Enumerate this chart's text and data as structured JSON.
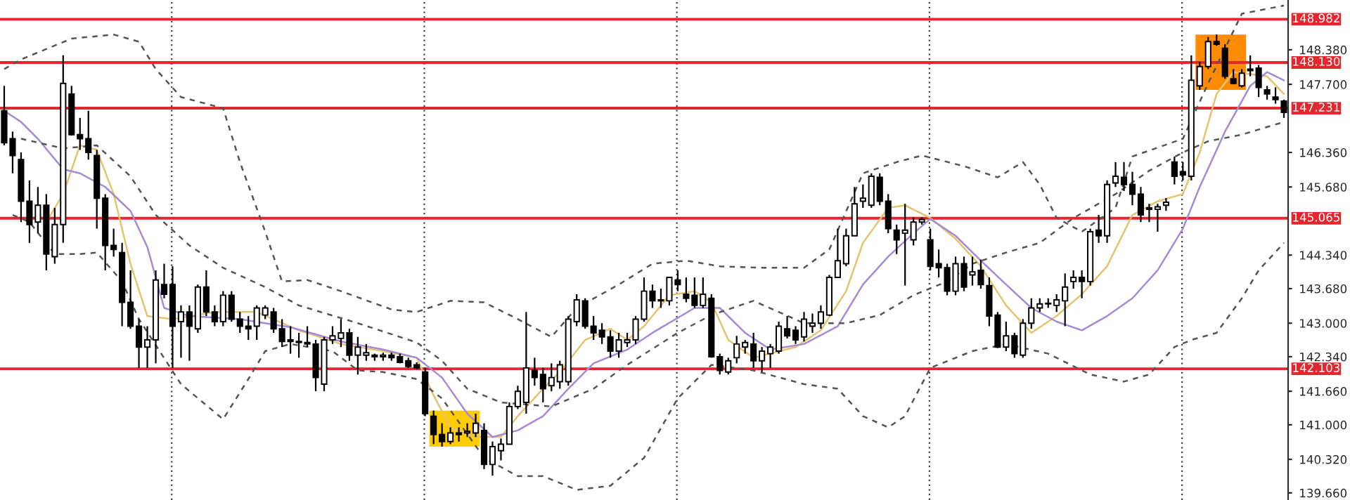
{
  "chart_data": {
    "type": "candlestick",
    "categories": [
      null,
      null,
      null,
      null,
      null,
      null,
      null,
      null,
      null,
      null,
      null,
      null,
      null,
      null,
      null,
      null,
      null,
      null,
      null,
      null,
      null,
      null,
      null,
      null,
      null,
      null,
      null,
      null,
      null,
      null,
      null,
      null,
      null,
      null,
      null,
      null,
      null,
      null,
      null,
      null,
      null,
      null,
      null,
      null,
      null,
      null,
      null,
      null,
      null,
      null,
      null,
      null,
      null,
      null,
      null,
      null,
      null,
      null,
      null,
      null,
      null,
      null,
      null,
      null,
      null,
      null,
      null,
      null,
      null,
      null,
      null,
      null,
      null,
      null,
      null,
      null,
      null,
      null,
      null,
      null,
      null,
      null,
      null,
      null,
      null,
      null,
      null,
      null,
      null,
      null,
      null,
      null,
      null,
      null,
      null,
      null,
      null,
      null,
      null,
      null,
      null,
      null,
      null,
      null,
      null,
      null,
      null,
      null,
      null,
      null,
      null,
      null,
      null,
      null,
      null,
      null,
      null,
      null,
      null,
      null,
      null,
      null,
      null,
      null,
      null,
      null,
      null,
      null,
      null,
      null,
      null,
      null,
      null,
      null,
      null,
      null,
      null,
      null,
      null,
      null,
      null,
      null,
      null,
      null,
      null,
      null,
      null,
      null,
      null,
      null,
      null,
      null,
      null
    ],
    "ohlc": [
      [
        147.18,
        147.67,
        146.5,
        146.55
      ],
      [
        146.63,
        146.77,
        145.95,
        146.3
      ],
      [
        146.22,
        146.36,
        144.99,
        145.4
      ],
      [
        145.4,
        145.81,
        144.58,
        144.94
      ],
      [
        144.99,
        145.68,
        144.77,
        145.32
      ],
      [
        145.32,
        145.54,
        144.04,
        144.36
      ],
      [
        144.31,
        145.27,
        144.17,
        144.94
      ],
      [
        144.94,
        148.27,
        144.58,
        147.72
      ],
      [
        147.51,
        147.67,
        146.69,
        146.71
      ],
      [
        146.71,
        147.04,
        146.41,
        146.63
      ],
      [
        146.63,
        147.18,
        146.22,
        146.36
      ],
      [
        146.3,
        146.41,
        144.86,
        145.46
      ],
      [
        145.46,
        145.54,
        144.04,
        144.53
      ],
      [
        144.53,
        144.86,
        144.31,
        144.45
      ],
      [
        144.39,
        144.58,
        142.94,
        143.41
      ],
      [
        143.41,
        144.04,
        142.89,
        142.94
      ],
      [
        142.94,
        143.08,
        142.12,
        142.53
      ],
      [
        142.53,
        142.94,
        142.12,
        142.67
      ],
      [
        142.67,
        144.04,
        142.21,
        143.85
      ],
      [
        143.76,
        144.17,
        143.49,
        143.57
      ],
      [
        143.76,
        144.12,
        142.12,
        142.94
      ],
      [
        143.03,
        143.35,
        142.32,
        143.22
      ],
      [
        143.22,
        143.35,
        142.26,
        142.94
      ],
      [
        142.89,
        143.76,
        142.81,
        143.71
      ],
      [
        143.71,
        144.04,
        143.14,
        143.22
      ],
      [
        143.22,
        143.35,
        142.94,
        143.03
      ],
      [
        143.03,
        143.63,
        142.94,
        143.55
      ],
      [
        143.55,
        143.63,
        143.03,
        143.08
      ],
      [
        143.08,
        143.22,
        142.81,
        142.94
      ],
      [
        142.94,
        143.14,
        142.67,
        142.89
      ],
      [
        142.94,
        143.35,
        142.67,
        143.3
      ],
      [
        143.16,
        143.35,
        143.08,
        143.3
      ],
      [
        143.22,
        143.3,
        142.81,
        142.89
      ],
      [
        142.89,
        143.08,
        142.53,
        142.64
      ],
      [
        142.67,
        142.94,
        142.4,
        142.64
      ],
      [
        142.64,
        142.81,
        142.32,
        142.62
      ],
      [
        142.62,
        142.94,
        142.53,
        142.59
      ],
      [
        142.59,
        142.67,
        141.66,
        141.93
      ],
      [
        141.8,
        142.73,
        141.66,
        142.67
      ],
      [
        142.67,
        142.94,
        142.59,
        142.75
      ],
      [
        142.7,
        143.08,
        142.53,
        142.81
      ],
      [
        142.81,
        142.89,
        142.26,
        142.37
      ],
      [
        142.37,
        142.73,
        141.99,
        142.53
      ],
      [
        142.37,
        142.59,
        142.26,
        142.42
      ],
      [
        142.37,
        142.4,
        142.26,
        142.34
      ],
      [
        142.34,
        142.42,
        142.26,
        142.37
      ],
      [
        142.37,
        142.42,
        142.26,
        142.32
      ],
      [
        142.34,
        142.4,
        142.21,
        142.23
      ],
      [
        142.26,
        142.32,
        142.12,
        142.15
      ],
      [
        142.18,
        142.23,
        142.1,
        142.12
      ],
      [
        142.04,
        142.12,
        141.17,
        141.22
      ],
      [
        141.17,
        141.28,
        140.62,
        140.81
      ],
      [
        140.81,
        141.03,
        140.57,
        140.67
      ],
      [
        140.67,
        140.95,
        140.62,
        140.84
      ],
      [
        140.84,
        140.95,
        140.67,
        140.81
      ],
      [
        140.84,
        141.03,
        140.76,
        140.87
      ],
      [
        140.84,
        141.22,
        140.76,
        141.03
      ],
      [
        140.89,
        141.03,
        140.13,
        140.22
      ],
      [
        140.22,
        140.67,
        140.0,
        140.57
      ],
      [
        140.49,
        140.73,
        140.3,
        140.62
      ],
      [
        140.62,
        141.44,
        140.62,
        141.36
      ],
      [
        141.36,
        141.77,
        141.31,
        141.66
      ],
      [
        141.44,
        143.22,
        141.22,
        142.12
      ],
      [
        142.07,
        142.32,
        141.77,
        141.93
      ],
      [
        141.99,
        142.12,
        141.44,
        141.71
      ],
      [
        141.77,
        142.21,
        141.66,
        141.93
      ],
      [
        141.85,
        142.26,
        141.71,
        142.18
      ],
      [
        141.85,
        143.14,
        141.77,
        143.08
      ],
      [
        143.03,
        143.57,
        142.94,
        143.46
      ],
      [
        143.44,
        143.49,
        142.89,
        142.94
      ],
      [
        142.94,
        143.14,
        142.67,
        142.81
      ],
      [
        142.86,
        143.0,
        142.59,
        142.73
      ],
      [
        142.73,
        142.86,
        142.32,
        142.45
      ],
      [
        142.45,
        142.81,
        142.32,
        142.67
      ],
      [
        142.62,
        142.81,
        142.53,
        142.67
      ],
      [
        142.67,
        143.14,
        142.59,
        143.08
      ],
      [
        143.08,
        143.9,
        143.03,
        143.63
      ],
      [
        143.63,
        143.76,
        143.3,
        143.44
      ],
      [
        143.44,
        143.68,
        143.3,
        143.46
      ],
      [
        143.44,
        143.9,
        143.35,
        143.9
      ],
      [
        143.85,
        144.04,
        143.63,
        143.76
      ],
      [
        143.57,
        143.9,
        143.41,
        143.49
      ],
      [
        143.55,
        143.9,
        143.3,
        143.35
      ],
      [
        143.35,
        143.9,
        143.3,
        143.57
      ],
      [
        143.49,
        143.57,
        142.32,
        142.34
      ],
      [
        142.34,
        142.4,
        141.99,
        142.07
      ],
      [
        142.04,
        142.32,
        141.99,
        142.26
      ],
      [
        142.32,
        142.75,
        142.21,
        142.59
      ],
      [
        142.53,
        142.67,
        142.4,
        142.62
      ],
      [
        142.59,
        142.81,
        142.12,
        142.26
      ],
      [
        142.26,
        142.53,
        142.04,
        142.45
      ],
      [
        142.4,
        142.59,
        142.12,
        142.53
      ],
      [
        142.45,
        143.03,
        142.4,
        142.94
      ],
      [
        142.89,
        143.14,
        142.7,
        142.75
      ],
      [
        142.86,
        142.94,
        142.59,
        142.67
      ],
      [
        142.73,
        143.22,
        142.64,
        143.08
      ],
      [
        142.94,
        143.19,
        142.81,
        143.0
      ],
      [
        143.0,
        143.35,
        142.89,
        143.22
      ],
      [
        143.16,
        143.95,
        143.14,
        143.9
      ],
      [
        143.9,
        144.86,
        143.9,
        144.23
      ],
      [
        144.17,
        144.86,
        144.12,
        144.72
      ],
      [
        144.72,
        145.68,
        144.72,
        145.35
      ],
      [
        145.4,
        145.73,
        145.27,
        145.46
      ],
      [
        145.32,
        145.95,
        145.27,
        145.89
      ],
      [
        145.87,
        145.95,
        145.32,
        145.4
      ],
      [
        145.4,
        145.54,
        144.77,
        144.86
      ],
      [
        144.83,
        144.94,
        144.36,
        144.64
      ],
      [
        144.77,
        145.35,
        143.74,
        144.83
      ],
      [
        144.64,
        145.08,
        144.53,
        144.99
      ],
      [
        144.99,
        145.08,
        144.94,
        145.04
      ],
      [
        144.64,
        144.86,
        144.04,
        144.12
      ],
      [
        144.17,
        144.45,
        143.9,
        144.09
      ],
      [
        144.09,
        144.17,
        143.55,
        143.63
      ],
      [
        143.63,
        144.31,
        143.55,
        144.17
      ],
      [
        144.17,
        144.31,
        143.63,
        143.71
      ],
      [
        143.95,
        144.31,
        143.74,
        144.01
      ],
      [
        144.04,
        144.25,
        143.68,
        143.76
      ],
      [
        143.74,
        143.9,
        142.94,
        143.14
      ],
      [
        143.16,
        143.22,
        142.51,
        142.53
      ],
      [
        142.53,
        143.03,
        142.45,
        142.75
      ],
      [
        142.75,
        142.81,
        142.32,
        142.4
      ],
      [
        142.37,
        143.08,
        142.32,
        143.0
      ],
      [
        143.0,
        143.49,
        142.89,
        143.3
      ],
      [
        143.3,
        143.49,
        143.22,
        143.38
      ],
      [
        143.38,
        143.49,
        143.3,
        143.38
      ],
      [
        143.35,
        143.57,
        143.22,
        143.46
      ],
      [
        143.44,
        143.98,
        142.94,
        143.71
      ],
      [
        143.82,
        144.04,
        143.68,
        143.9
      ],
      [
        143.9,
        144.04,
        143.49,
        143.82
      ],
      [
        143.82,
        144.86,
        143.74,
        144.8
      ],
      [
        144.83,
        145.13,
        144.58,
        144.72
      ],
      [
        144.72,
        145.81,
        144.58,
        145.73
      ],
      [
        145.76,
        146.17,
        145.68,
        145.89
      ],
      [
        145.87,
        146.17,
        145.6,
        145.73
      ],
      [
        145.73,
        145.98,
        145.32,
        145.54
      ],
      [
        145.54,
        145.68,
        144.99,
        145.13
      ],
      [
        145.27,
        145.35,
        144.99,
        145.24
      ],
      [
        145.24,
        145.35,
        144.8,
        145.29
      ],
      [
        145.32,
        145.46,
        145.21,
        145.38
      ],
      [
        146.17,
        146.28,
        145.73,
        145.89
      ],
      [
        145.98,
        146.17,
        145.81,
        145.92
      ],
      [
        145.89,
        148.27,
        145.81,
        147.78
      ],
      [
        147.67,
        148.14,
        147.59,
        148.05
      ],
      [
        148.05,
        148.63,
        148.0,
        148.54
      ],
      [
        148.54,
        148.68,
        148.46,
        148.49
      ],
      [
        148.41,
        148.49,
        147.81,
        147.86
      ],
      [
        147.81,
        148.0,
        147.7,
        147.72
      ],
      [
        147.67,
        148.0,
        147.64,
        147.92
      ],
      [
        147.97,
        148.27,
        147.86,
        148.0
      ],
      [
        148.02,
        148.08,
        147.45,
        147.64
      ],
      [
        147.59,
        147.67,
        147.4,
        147.51
      ],
      [
        147.45,
        147.64,
        147.32,
        147.4
      ],
      [
        147.37,
        147.4,
        147.04,
        147.15
      ]
    ],
    "series": [
      {
        "type": "line",
        "color": "#e6c36e",
        "line_style": "solid",
        "values": [
          null,
          null,
          null,
          null,
          null,
          144.99,
          null,
          145.54,
          null,
          146.5,
          null,
          146.41,
          null,
          145.54,
          null,
          144.17,
          null,
          143.14,
          null,
          null,
          143.08,
          null,
          null,
          null,
          null,
          143.22,
          null,
          null,
          null,
          null,
          143.22,
          null,
          null,
          null,
          null,
          142.86,
          null,
          null,
          null,
          null,
          142.59,
          null,
          null,
          null,
          null,
          142.45,
          null,
          null,
          null,
          142.32,
          null,
          141.58,
          null,
          140.95,
          null,
          null,
          140.76,
          null,
          null,
          140.76,
          null,
          141.17,
          null,
          null,
          141.71,
          null,
          142.04,
          null,
          null,
          142.67,
          null,
          null,
          142.89,
          null,
          142.67,
          null,
          142.94,
          null,
          null,
          143.55,
          null,
          null,
          143.63,
          null,
          143.41,
          null,
          142.67,
          null,
          null,
          142.32,
          null,
          null,
          null,
          null,
          142.53,
          null,
          null,
          142.86,
          null,
          null,
          143.63,
          null,
          144.58,
          null,
          null,
          145.27,
          null,
          145.32,
          null,
          null,
          145.07,
          null,
          null,
          144.66,
          null,
          null,
          144.12,
          null,
          null,
          143.35,
          null,
          null,
          142.81,
          null,
          null,
          143.14,
          null,
          null,
          143.57,
          null,
          null,
          144.12,
          null,
          null,
          145.13,
          null,
          null,
          145.4,
          null,
          null,
          145.54,
          null,
          146.36,
          null,
          147.51,
          null,
          147.94,
          null,
          null,
          null,
          147.86,
          null,
          147.51
        ]
      },
      {
        "type": "line",
        "color": "#a58ad6",
        "line_style": "solid",
        "values": [
          147.18,
          null,
          146.96,
          null,
          146.63,
          null,
          null,
          146.03,
          null,
          145.95,
          null,
          null,
          145.68,
          null,
          null,
          145.21,
          null,
          144.5,
          null,
          143.3,
          null,
          null,
          143.14,
          null,
          null,
          null,
          null,
          null,
          143.08,
          null,
          null,
          null,
          null,
          null,
          142.92,
          null,
          null,
          null,
          null,
          null,
          142.64,
          null,
          null,
          null,
          null,
          142.48,
          null,
          null,
          null,
          142.32,
          null,
          null,
          141.93,
          null,
          null,
          141.22,
          null,
          null,
          140.76,
          null,
          null,
          140.89,
          null,
          null,
          141.17,
          null,
          null,
          141.71,
          null,
          null,
          142.21,
          null,
          null,
          null,
          142.48,
          null,
          null,
          142.81,
          null,
          null,
          null,
          null,
          143.3,
          null,
          null,
          143.3,
          null,
          null,
          142.81,
          null,
          null,
          142.48,
          null,
          null,
          null,
          142.59,
          null,
          null,
          null,
          142.94,
          null,
          null,
          143.76,
          null,
          null,
          144.31,
          null,
          null,
          144.77,
          null,
          145.05,
          null,
          null,
          144.72,
          null,
          null,
          144.23,
          null,
          null,
          143.76,
          null,
          null,
          143.3,
          null,
          null,
          143.03,
          null,
          null,
          142.86,
          null,
          null,
          143.14,
          null,
          null,
          143.49,
          null,
          null,
          144.04,
          null,
          null,
          144.86,
          null,
          145.68,
          null,
          null,
          146.77,
          null,
          null,
          147.67,
          null,
          147.94,
          null,
          147.78
        ]
      },
      {
        "type": "line",
        "color": "#555555",
        "line_style": "dashed",
        "values": [
          148.0,
          null,
          148.19,
          null,
          null,
          null,
          null,
          null,
          148.6,
          null,
          null,
          null,
          null,
          148.68,
          null,
          null,
          148.54,
          null,
          148.0,
          null,
          null,
          147.45,
          null,
          null,
          null,
          null,
          147.23,
          null,
          146.17,
          null,
          null,
          144.8,
          null,
          143.82,
          null,
          null,
          143.85,
          null,
          null,
          null,
          143.63,
          null,
          null,
          null,
          null,
          null,
          143.27,
          null,
          null,
          143.22,
          null,
          null,
          null,
          143.44,
          null,
          null,
          null,
          143.41,
          null,
          null,
          null,
          143.08,
          null,
          null,
          null,
          142.73,
          null,
          null,
          143.3,
          null,
          null,
          null,
          null,
          143.76,
          null,
          null,
          null,
          144.17,
          null,
          null,
          null,
          144.23,
          null,
          null,
          null,
          144.12,
          null,
          null,
          null,
          null,
          144.09,
          null,
          null,
          null,
          null,
          144.09,
          null,
          null,
          144.45,
          null,
          null,
          null,
          145.95,
          null,
          null,
          null,
          146.17,
          null,
          null,
          146.3,
          null,
          null,
          null,
          null,
          146.09,
          null,
          null,
          null,
          145.87,
          null,
          null,
          146.17,
          null,
          145.73,
          null,
          145.07,
          null,
          null,
          144.8,
          null,
          null,
          null,
          145.27,
          null,
          146.28,
          null,
          null,
          null,
          null,
          null,
          146.63,
          null,
          null,
          147.72,
          null,
          null,
          null,
          149.09,
          null,
          null,
          null,
          null,
          149.25
        ]
      },
      {
        "type": "line",
        "color": "#555555",
        "line_style": "dashed",
        "values": [
          null,
          null,
          146.63,
          null,
          null,
          null,
          null,
          146.44,
          null,
          null,
          null,
          146.5,
          null,
          null,
          null,
          145.89,
          null,
          null,
          145.13,
          null,
          null,
          null,
          144.53,
          null,
          null,
          null,
          144.09,
          null,
          null,
          null,
          null,
          143.71,
          null,
          null,
          null,
          143.35,
          null,
          null,
          null,
          null,
          null,
          null,
          143.0,
          null,
          null,
          null,
          null,
          null,
          null,
          142.62,
          null,
          null,
          142.26,
          null,
          null,
          141.71,
          null,
          null,
          null,
          141.44,
          null,
          null,
          null,
          null,
          null,
          141.36,
          null,
          null,
          null,
          null,
          141.71,
          null,
          null,
          null,
          142.18,
          null,
          null,
          null,
          null,
          null,
          142.81,
          null,
          null,
          null,
          143.16,
          null,
          null,
          null,
          null,
          143.44,
          null,
          null,
          null,
          null,
          null,
          143.0,
          null,
          null,
          null,
          null,
          143.0,
          null,
          null,
          null,
          143.16,
          null,
          null,
          null,
          143.55,
          null,
          null,
          null,
          143.82,
          null,
          null,
          144.17,
          null,
          null,
          null,
          144.39,
          null,
          null,
          null,
          144.58,
          null,
          null,
          null,
          145.07,
          null,
          null,
          null,
          null,
          145.54,
          null,
          null,
          null,
          146.0,
          null,
          null,
          null,
          146.36,
          null,
          null,
          146.58,
          null,
          null,
          null,
          146.71,
          null,
          null,
          null,
          null,
          146.96
        ]
      },
      {
        "type": "line",
        "color": "#555555",
        "line_style": "dashed",
        "values": [
          null,
          145.13,
          null,
          144.99,
          null,
          null,
          144.36,
          null,
          null,
          144.36,
          null,
          144.39,
          null,
          null,
          143.82,
          null,
          143.08,
          null,
          null,
          null,
          null,
          141.8,
          null,
          null,
          null,
          null,
          141.11,
          null,
          null,
          141.9,
          null,
          142.45,
          null,
          null,
          142.59,
          null,
          null,
          null,
          null,
          142.45,
          null,
          null,
          142.07,
          null,
          null,
          142.04,
          null,
          null,
          null,
          141.9,
          null,
          null,
          141.52,
          null,
          null,
          null,
          null,
          140.35,
          null,
          null,
          null,
          139.99,
          null,
          null,
          139.99,
          null,
          null,
          null,
          139.72,
          null,
          null,
          null,
          139.8,
          null,
          null,
          null,
          140.35,
          null,
          null,
          null,
          141.52,
          null,
          null,
          null,
          142.18,
          null,
          null,
          null,
          null,
          142.07,
          null,
          null,
          null,
          null,
          null,
          141.8,
          null,
          null,
          null,
          141.71,
          null,
          null,
          141.17,
          null,
          null,
          140.95,
          null,
          141.17,
          null,
          null,
          142.12,
          null,
          null,
          null,
          null,
          142.45,
          null,
          null,
          null,
          142.59,
          null,
          null,
          null,
          null,
          142.4,
          null,
          null,
          null,
          null,
          141.99,
          null,
          null,
          null,
          141.85,
          null,
          null,
          141.99,
          null,
          null,
          142.53,
          null,
          142.67,
          null,
          null,
          142.81,
          null,
          null,
          143.49,
          null,
          144.04,
          null,
          null,
          144.58
        ]
      }
    ],
    "ylim": [
      139.52,
      149.36
    ],
    "yticks": [
      {
        "value": 148.38,
        "label": "148.380"
      },
      {
        "value": 147.7,
        "label": "147.700"
      },
      {
        "value": 146.36,
        "label": "146.360"
      },
      {
        "value": 145.68,
        "label": "145.680"
      },
      {
        "value": 144.34,
        "label": "144.340"
      },
      {
        "value": 143.68,
        "label": "143.680"
      },
      {
        "value": 143.0,
        "label": "143.000"
      },
      {
        "value": 142.34,
        "label": "142.340"
      },
      {
        "value": 141.66,
        "label": "141.660"
      },
      {
        "value": 141.0,
        "label": "141.000"
      },
      {
        "value": 140.32,
        "label": "140.320"
      },
      {
        "value": 139.66,
        "label": "139.660"
      }
    ],
    "ref_lines": [
      {
        "axis": "y",
        "value": 148.982,
        "label": "148.982",
        "color": "#e0282e"
      },
      {
        "axis": "y",
        "value": 148.13,
        "label": "148.130",
        "color": "#e0282e"
      },
      {
        "axis": "y",
        "value": 147.231,
        "label": "147.231",
        "color": "#e0282e"
      },
      {
        "axis": "y",
        "value": 145.065,
        "label": "145.065",
        "color": "#e0282e"
      },
      {
        "axis": "y",
        "value": 142.103,
        "label": "142.103",
        "color": "#e0282e"
      }
    ],
    "grid": "x",
    "tick_labels": "y"
  }
}
